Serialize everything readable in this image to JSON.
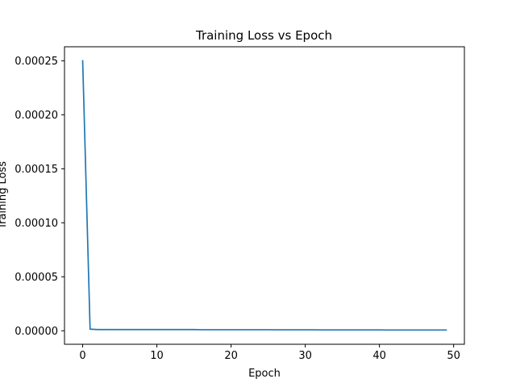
{
  "chart_data": {
    "type": "line",
    "title": "Training Loss vs Epoch",
    "xlabel": "Epoch",
    "ylabel": "Training Loss",
    "xlim": [
      -2.45,
      51.45
    ],
    "ylim": [
      -1.25e-05,
      0.000263
    ],
    "xticks": [
      0,
      10,
      20,
      30,
      40,
      50
    ],
    "xtick_labels": [
      "0",
      "10",
      "20",
      "30",
      "40",
      "50"
    ],
    "yticks": [
      0.0,
      5e-05,
      0.0001,
      0.00015,
      0.0002,
      0.00025
    ],
    "ytick_labels": [
      "0.00000",
      "0.00005",
      "0.00010",
      "0.00015",
      "0.00020",
      "0.00025"
    ],
    "grid": false,
    "series": [
      {
        "color": "#1f77b4",
        "x": [
          0,
          1,
          2,
          3,
          4,
          5,
          6,
          7,
          8,
          9,
          10,
          11,
          12,
          13,
          14,
          15,
          16,
          17,
          18,
          19,
          20,
          21,
          22,
          23,
          24,
          25,
          26,
          27,
          28,
          29,
          30,
          31,
          32,
          33,
          34,
          35,
          36,
          37,
          38,
          39,
          40,
          41,
          42,
          43,
          44,
          45,
          46,
          47,
          48,
          49
        ],
        "y": [
          0.00025,
          1.5e-06,
          1.1e-06,
          1.1e-06,
          1.1e-06,
          1.1e-06,
          1.1e-06,
          1.1e-06,
          1.1e-06,
          1.1e-06,
          1.1e-06,
          1.1e-06,
          1.1e-06,
          1.1e-06,
          1.1e-06,
          1.1e-06,
          1e-06,
          1e-06,
          1e-06,
          1e-06,
          1e-06,
          1e-06,
          1e-06,
          1e-06,
          1e-06,
          1e-06,
          9e-07,
          9e-07,
          9e-07,
          9e-07,
          9e-07,
          9e-07,
          8e-07,
          8e-07,
          8e-07,
          8e-07,
          8e-07,
          8e-07,
          8e-07,
          8e-07,
          8e-07,
          7e-07,
          7e-07,
          7e-07,
          7e-07,
          7e-07,
          7e-07,
          7e-07,
          7e-07,
          7e-07
        ]
      }
    ]
  }
}
